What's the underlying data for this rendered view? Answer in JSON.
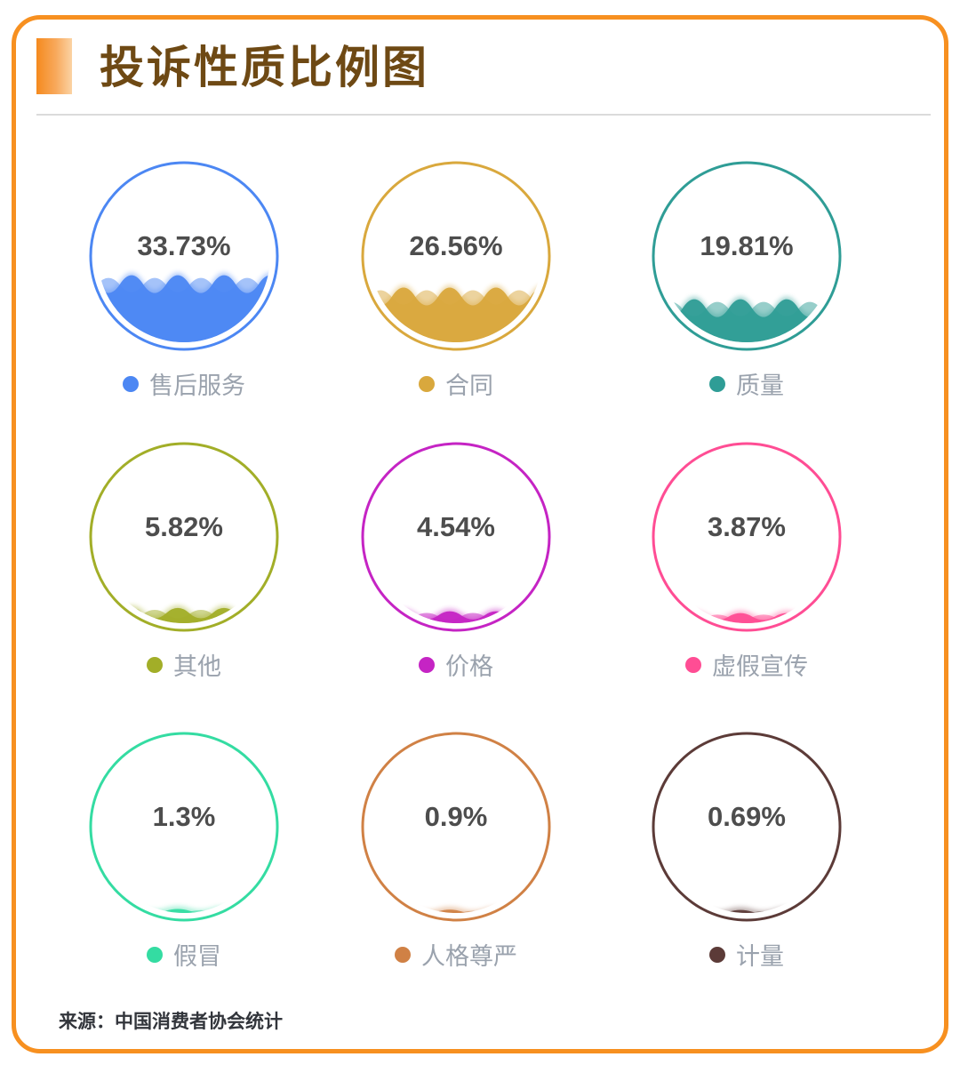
{
  "page": {
    "title": "投诉性质比例图",
    "source": "来源：中国消费者协会统计",
    "accent_color": "#F79020",
    "title_color": "#6E4914",
    "value_text_color": "#4D4D4D",
    "legend_text_color": "#9AA2AD"
  },
  "chart_data": {
    "type": "pie",
    "subtype": "liquid-fill-gauge-grid",
    "title": "投诉性质比例图",
    "unit": "%",
    "grid": "3x3",
    "legend_position": "below-each-gauge",
    "categories": [
      "售后服务",
      "合同",
      "质量",
      "其他",
      "价格",
      "虚假宣传",
      "假冒",
      "人格尊严",
      "计量"
    ],
    "values": [
      33.73,
      26.56,
      19.81,
      5.82,
      4.54,
      3.87,
      1.3,
      0.9,
      0.69
    ],
    "items": [
      {
        "label": "售后服务",
        "value": 33.73,
        "display": "33.73%",
        "color": "#4C87F3"
      },
      {
        "label": "合同",
        "value": 26.56,
        "display": "26.56%",
        "color": "#D9A83D"
      },
      {
        "label": "质量",
        "value": 19.81,
        "display": "19.81%",
        "color": "#2F9D96"
      },
      {
        "label": "其他",
        "value": 5.82,
        "display": "5.82%",
        "color": "#A2AE28"
      },
      {
        "label": "价格",
        "value": 4.54,
        "display": "4.54%",
        "color": "#C524C4"
      },
      {
        "label": "虚假宣传",
        "value": 3.87,
        "display": "3.87%",
        "color": "#FF4D94"
      },
      {
        "label": "假冒",
        "value": 1.3,
        "display": "1.3%",
        "color": "#34DCA2"
      },
      {
        "label": "人格尊严",
        "value": 0.9,
        "display": "0.9%",
        "color": "#D08145"
      },
      {
        "label": "计量",
        "value": 0.69,
        "display": "0.69%",
        "color": "#5C3B38"
      }
    ],
    "source": "来源：中国消费者协会统计"
  }
}
